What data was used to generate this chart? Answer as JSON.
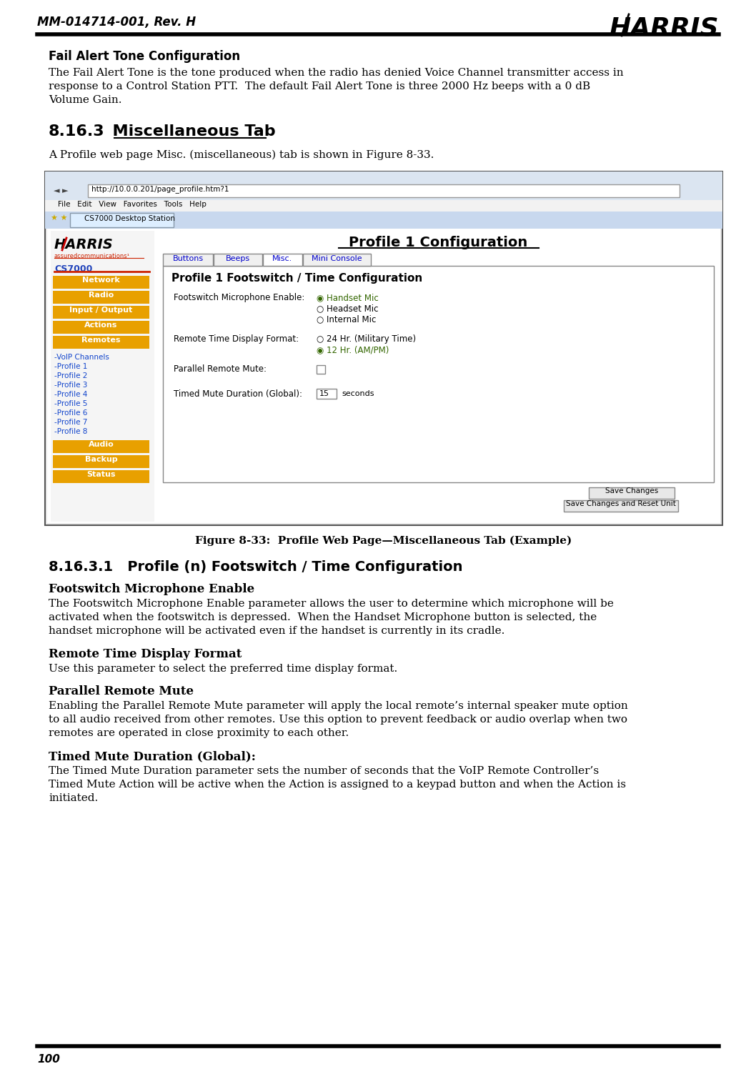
{
  "header_left": "MM-014714-001, Rev. H",
  "footer_page": "100",
  "bg_color": "#ffffff",
  "section_title_fail": "Fail Alert Tone Configuration",
  "para_fail_1": "The Fail Alert Tone is the tone produced when the radio has denied Voice Channel transmitter access in",
  "para_fail_2": "response to a Control Station PTT.  The default Fail Alert Tone is three 2000 Hz beeps with a 0 dB",
  "para_fail_3": "Volume Gain.",
  "section_816_3_num": "8.16.3",
  "section_816_3_title": "  Miscellaneous Tab",
  "para_816_3": "A Profile web page Misc. (miscellaneous) tab is shown in Figure 8-33.",
  "figure_caption": "Figure 8-33:  Profile Web Page—Miscellaneous Tab (Example)",
  "section_816_3_1": "8.16.3.1   Profile (n) Footswitch / Time Configuration",
  "subsec_footswitch": "Footswitch Microphone Enable",
  "para_footswitch_1": "The Footswitch Microphone Enable parameter allows the user to determine which microphone will be",
  "para_footswitch_2": "activated when the footswitch is depressed.  When the Handset Microphone button is selected, the",
  "para_footswitch_3": "handset microphone will be activated even if the handset is currently in its cradle.",
  "subsec_remote_time": "Remote Time Display Format",
  "para_remote_time": "Use this parameter to select the preferred time display format.",
  "subsec_parallel": "Parallel Remote Mute",
  "para_parallel_1": "Enabling the Parallel Remote Mute parameter will apply the local remote’s internal speaker mute option",
  "para_parallel_2": "to all audio received from other remotes. Use this option to prevent feedback or audio overlap when two",
  "para_parallel_3": "remotes are operated in close proximity to each other.",
  "subsec_timed": "Timed Mute Duration (Global):",
  "para_timed_1": "The Timed Mute Duration parameter sets the number of seconds that the VoIP Remote Controller’s",
  "para_timed_2": "Timed Mute Action will be active when the Action is assigned to a keypad button and when the Action is",
  "para_timed_3": "initiated.",
  "screenshot_url": "http://10.0.0.201/page_profile.htm?1",
  "screenshot_menu": "File   Edit   View   Favorites   Tools   Help",
  "screenshot_tab": "CS7000 Desktop Station",
  "profile_heading": "Profile 1 Configuration",
  "footswitch_heading": "Profile 1 Footswitch / Time Configuration",
  "tab_names": [
    "Buttons",
    "Beeps",
    "Misc.",
    "Mini Console"
  ],
  "nav_buttons": [
    "Network",
    "Radio",
    "Input / Output",
    "Actions",
    "Remotes"
  ],
  "nav_links": [
    "-VoIP Channels",
    "-Profile 1",
    "-Profile 2",
    "-Profile 3",
    "-Profile 4",
    "-Profile 5",
    "-Profile 6",
    "-Profile 7",
    "-Profile 8"
  ],
  "more_buttons": [
    "Audio",
    "Backup",
    "Status"
  ],
  "orange_color": "#e8a000",
  "nav_button_color": "#cc8800"
}
